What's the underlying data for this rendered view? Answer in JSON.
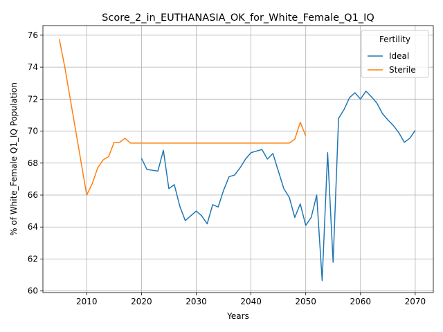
{
  "chart_data": {
    "type": "line",
    "title": "Score_2_in_EUTHANASIA_OK_for_White_Female_Q1_IQ",
    "xlabel": "Years",
    "ylabel": "% of White_Female Q1_IQ Population",
    "xlim": [
      2002,
      2073.3
    ],
    "ylim": [
      59.9,
      76.6
    ],
    "xticks": [
      2010,
      2020,
      2030,
      2040,
      2050,
      2060,
      2070
    ],
    "yticks": [
      60,
      62,
      64,
      66,
      68,
      70,
      72,
      74,
      76
    ],
    "grid": true,
    "legend": {
      "title": "Fertility",
      "position": "top-right"
    },
    "series": [
      {
        "name": "Ideal",
        "color": "#1f77b4",
        "x": [
          2020,
          2021,
          2022,
          2023,
          2024,
          2025,
          2026,
          2027,
          2028,
          2029,
          2030,
          2031,
          2032,
          2033,
          2034,
          2035,
          2036,
          2037,
          2038,
          2039,
          2040,
          2041,
          2042,
          2043,
          2044,
          2045,
          2046,
          2047,
          2048,
          2049,
          2050,
          2051,
          2052,
          2053,
          2054,
          2055,
          2056,
          2057,
          2058,
          2059,
          2060,
          2061,
          2062,
          2063,
          2064,
          2065,
          2066,
          2067,
          2068,
          2069,
          2070
        ],
        "y": [
          68.3,
          67.6,
          67.55,
          67.5,
          68.8,
          66.4,
          66.65,
          65.3,
          64.4,
          64.7,
          65.0,
          64.7,
          64.2,
          65.4,
          65.25,
          66.3,
          67.15,
          67.25,
          67.7,
          68.25,
          68.65,
          68.75,
          68.85,
          68.25,
          68.6,
          67.5,
          66.4,
          65.85,
          64.6,
          65.45,
          64.1,
          64.6,
          66.0,
          60.65,
          68.65,
          61.8,
          70.8,
          71.35,
          72.1,
          72.4,
          72.0,
          72.5,
          72.15,
          71.75,
          71.1,
          70.7,
          70.35,
          69.9,
          69.3,
          69.55,
          70.05
        ]
      },
      {
        "name": "Sterile",
        "color": "#ff7f0e",
        "x": [
          2005,
          2006,
          2007,
          2008,
          2009,
          2010,
          2011,
          2012,
          2013,
          2014,
          2015,
          2016,
          2017,
          2018,
          2019,
          2020,
          2025,
          2030,
          2035,
          2040,
          2045,
          2047,
          2048,
          2049,
          2050
        ],
        "y": [
          75.75,
          74.0,
          72.0,
          70.0,
          68.0,
          66.0,
          66.7,
          67.7,
          68.2,
          68.4,
          69.3,
          69.3,
          69.55,
          69.25,
          69.25,
          69.25,
          69.25,
          69.25,
          69.25,
          69.25,
          69.25,
          69.25,
          69.5,
          70.55,
          69.7
        ]
      }
    ]
  }
}
